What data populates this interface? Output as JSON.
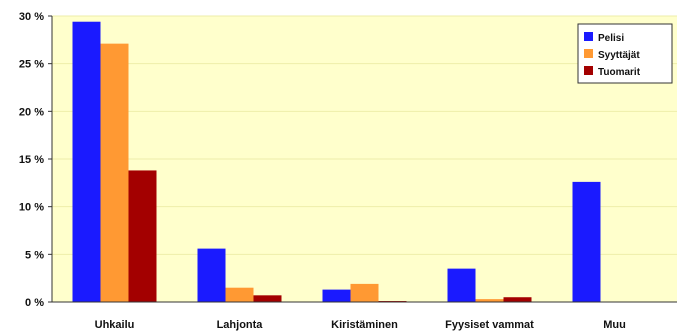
{
  "chart_data": {
    "type": "bar",
    "categories": [
      "Uhkailu",
      "Lahjonta",
      "Kiristäminen",
      "Fyysiset vammat",
      "Muu"
    ],
    "series": [
      {
        "name": "Pelisi",
        "color": "#1a1aff",
        "values": [
          29.4,
          5.6,
          1.3,
          3.5,
          12.6
        ]
      },
      {
        "name": "Syyttäjät",
        "color": "#ff9933",
        "values": [
          27.1,
          1.5,
          1.9,
          0.3,
          0
        ]
      },
      {
        "name": "Tuomarit",
        "color": "#a30000",
        "values": [
          13.8,
          0.7,
          0.1,
          0.5,
          0
        ]
      }
    ],
    "y_ticks": [
      "0 %",
      "5 %",
      "10 %",
      "15 %",
      "20 %",
      "25 %",
      "30 %"
    ],
    "ylim": [
      0,
      30
    ],
    "grid": true,
    "legend_position": "top-right",
    "plot_background": "#ffffcc",
    "gridline_color": "#eeeeaa"
  }
}
